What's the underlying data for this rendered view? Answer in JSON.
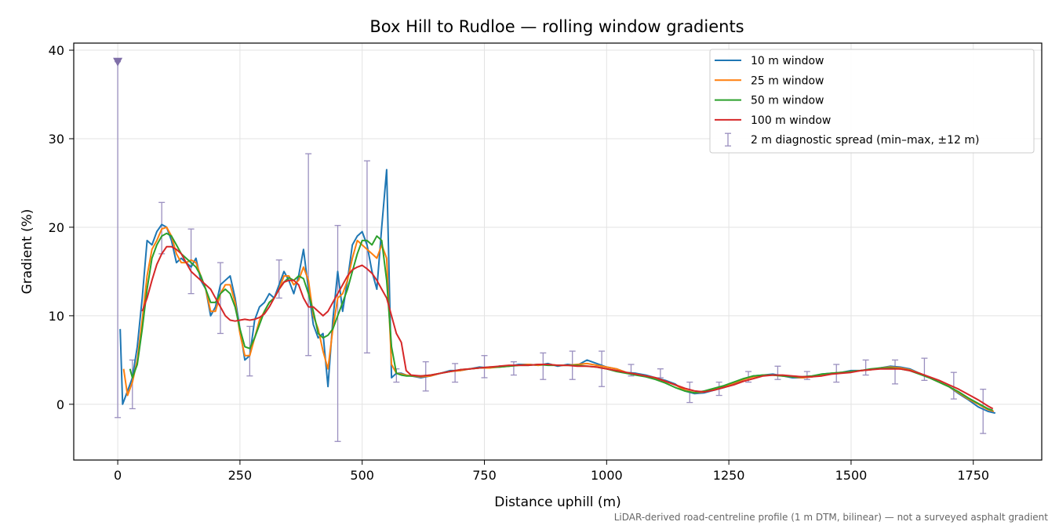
{
  "chart_data": {
    "type": "line",
    "title": "Box Hill to Rudloe — rolling window gradients",
    "xlabel": "Distance uphill (m)",
    "ylabel": "Gradient (%)",
    "xlim": [
      -90,
      1890
    ],
    "ylim": [
      -6.3,
      40.8
    ],
    "xticks": [
      0,
      250,
      500,
      750,
      1000,
      1250,
      1500,
      1750
    ],
    "yticks": [
      0,
      10,
      20,
      30,
      40
    ],
    "grid": true,
    "legend_position": "top-right",
    "footnote": "LiDAR-derived road-centreline profile (1 m DTM, bilinear) — not a surveyed asphalt gradient",
    "series": [
      {
        "name": "10 m window",
        "color": "#1f77b4",
        "x": [
          5,
          10,
          20,
          30,
          40,
          50,
          60,
          70,
          80,
          90,
          100,
          110,
          120,
          130,
          140,
          150,
          160,
          170,
          180,
          190,
          200,
          210,
          220,
          230,
          240,
          250,
          260,
          270,
          280,
          290,
          300,
          310,
          320,
          330,
          340,
          350,
          360,
          370,
          380,
          390,
          400,
          410,
          420,
          430,
          440,
          450,
          460,
          470,
          480,
          490,
          500,
          510,
          520,
          530,
          540,
          550,
          560,
          570,
          580,
          590,
          600,
          620,
          640,
          660,
          680,
          700,
          720,
          740,
          760,
          780,
          800,
          820,
          840,
          860,
          880,
          900,
          920,
          940,
          960,
          980,
          1000,
          1020,
          1040,
          1060,
          1080,
          1100,
          1120,
          1140,
          1160,
          1180,
          1200,
          1220,
          1240,
          1260,
          1280,
          1300,
          1320,
          1340,
          1360,
          1380,
          1400,
          1420,
          1440,
          1460,
          1480,
          1500,
          1520,
          1540,
          1560,
          1580,
          1600,
          1620,
          1640,
          1660,
          1680,
          1700,
          1720,
          1740,
          1760,
          1780,
          1795
        ],
        "y": [
          8.5,
          0.0,
          1.5,
          3.0,
          6.5,
          12.0,
          18.5,
          18.0,
          19.5,
          20.3,
          20.0,
          18.5,
          16.0,
          16.5,
          16.0,
          15.5,
          16.5,
          14.0,
          13.0,
          10.0,
          11.0,
          13.5,
          14.0,
          14.5,
          12.0,
          8.5,
          5.0,
          5.5,
          9.5,
          11.0,
          11.5,
          12.5,
          12.0,
          13.5,
          15.0,
          14.0,
          12.5,
          14.5,
          17.5,
          13.0,
          9.0,
          7.5,
          8.0,
          2.0,
          9.5,
          15.0,
          10.5,
          14.0,
          18.0,
          19.0,
          19.5,
          18.0,
          15.0,
          13.0,
          20.0,
          26.5,
          3.0,
          3.5,
          3.5,
          3.3,
          3.2,
          3.0,
          3.2,
          3.5,
          3.8,
          3.8,
          4.0,
          4.2,
          4.1,
          4.3,
          4.3,
          4.5,
          4.5,
          4.4,
          4.6,
          4.3,
          4.5,
          4.4,
          5.0,
          4.6,
          4.2,
          4.0,
          3.6,
          3.5,
          3.3,
          3.0,
          2.7,
          2.3,
          1.5,
          1.2,
          1.3,
          1.6,
          1.9,
          2.3,
          2.8,
          3.2,
          3.3,
          3.4,
          3.2,
          3.0,
          3.0,
          3.1,
          3.4,
          3.5,
          3.6,
          3.8,
          3.8,
          3.9,
          4.1,
          4.3,
          4.2,
          4.0,
          3.5,
          3.0,
          2.5,
          2.0,
          1.2,
          0.5,
          -0.3,
          -0.8,
          -1.0
        ]
      },
      {
        "name": "25 m window",
        "color": "#ff7f0e",
        "x": [
          12,
          20,
          30,
          40,
          50,
          60,
          70,
          80,
          90,
          100,
          110,
          120,
          130,
          140,
          150,
          160,
          170,
          180,
          190,
          200,
          210,
          220,
          230,
          240,
          250,
          260,
          270,
          280,
          290,
          300,
          310,
          320,
          330,
          340,
          350,
          360,
          370,
          380,
          390,
          400,
          410,
          420,
          430,
          440,
          450,
          460,
          470,
          480,
          490,
          500,
          510,
          520,
          530,
          540,
          550,
          560,
          570,
          580,
          590,
          600,
          620,
          640,
          660,
          680,
          700,
          720,
          740,
          760,
          780,
          800,
          820,
          840,
          860,
          880,
          900,
          920,
          940,
          960,
          980,
          1000,
          1020,
          1040,
          1060,
          1080,
          1100,
          1120,
          1140,
          1160,
          1180,
          1200,
          1220,
          1240,
          1260,
          1280,
          1300,
          1320,
          1340,
          1360,
          1380,
          1400,
          1420,
          1440,
          1460,
          1480,
          1500,
          1520,
          1540,
          1560,
          1580,
          1600,
          1620,
          1640,
          1660,
          1680,
          1700,
          1720,
          1740,
          1760,
          1780,
          1792
        ],
        "y": [
          4.0,
          1.0,
          2.5,
          5.0,
          9.5,
          14.5,
          17.5,
          18.5,
          19.8,
          20.0,
          19.0,
          17.0,
          16.0,
          16.0,
          16.3,
          16.0,
          14.5,
          13.0,
          10.5,
          10.5,
          12.5,
          13.5,
          13.5,
          11.5,
          8.0,
          5.5,
          5.5,
          7.5,
          9.5,
          10.5,
          11.5,
          12.0,
          13.0,
          14.5,
          14.5,
          13.5,
          14.0,
          15.5,
          14.0,
          10.0,
          8.5,
          6.0,
          4.0,
          8.5,
          12.0,
          12.5,
          14.0,
          16.5,
          18.5,
          18.0,
          17.5,
          17.0,
          16.5,
          18.0,
          16.5,
          4.5,
          3.5,
          3.4,
          3.3,
          3.2,
          3.1,
          3.2,
          3.5,
          3.7,
          3.8,
          4.0,
          4.1,
          4.1,
          4.2,
          4.3,
          4.4,
          4.5,
          4.4,
          4.5,
          4.4,
          4.4,
          4.5,
          4.6,
          4.4,
          4.2,
          4.0,
          3.6,
          3.4,
          3.2,
          3.0,
          2.6,
          2.2,
          1.6,
          1.3,
          1.4,
          1.7,
          2.0,
          2.4,
          2.8,
          3.1,
          3.3,
          3.3,
          3.2,
          3.1,
          3.0,
          3.1,
          3.3,
          3.5,
          3.6,
          3.7,
          3.8,
          3.9,
          4.1,
          4.2,
          4.1,
          3.9,
          3.5,
          3.0,
          2.5,
          2.0,
          1.3,
          0.6,
          0.0,
          -0.6,
          -0.8
        ]
      },
      {
        "name": "50 m window",
        "color": "#2ca02c",
        "x": [
          25,
          30,
          40,
          50,
          60,
          70,
          80,
          90,
          100,
          110,
          120,
          130,
          140,
          150,
          160,
          170,
          180,
          190,
          200,
          210,
          220,
          230,
          240,
          250,
          260,
          270,
          280,
          290,
          300,
          310,
          320,
          330,
          340,
          350,
          360,
          370,
          380,
          390,
          400,
          410,
          420,
          430,
          440,
          450,
          460,
          470,
          480,
          490,
          500,
          510,
          520,
          530,
          540,
          550,
          560,
          570,
          580,
          590,
          600,
          620,
          640,
          660,
          680,
          700,
          720,
          740,
          760,
          780,
          800,
          820,
          840,
          860,
          880,
          900,
          920,
          940,
          960,
          980,
          1000,
          1020,
          1040,
          1060,
          1080,
          1100,
          1120,
          1140,
          1160,
          1180,
          1200,
          1220,
          1240,
          1260,
          1280,
          1300,
          1320,
          1340,
          1360,
          1380,
          1400,
          1420,
          1440,
          1460,
          1480,
          1500,
          1520,
          1540,
          1560,
          1580,
          1600,
          1620,
          1640,
          1660,
          1680,
          1700,
          1720,
          1740,
          1760,
          1780,
          1790
        ],
        "y": [
          4.0,
          3.0,
          4.5,
          8.5,
          13.0,
          16.5,
          18.0,
          19.0,
          19.3,
          19.0,
          18.0,
          17.0,
          16.5,
          16.0,
          15.5,
          14.5,
          13.0,
          11.5,
          11.5,
          12.5,
          13.0,
          12.5,
          11.0,
          8.5,
          6.5,
          6.3,
          7.5,
          9.0,
          10.5,
          11.5,
          12.0,
          13.0,
          13.8,
          14.3,
          14.0,
          14.5,
          14.2,
          12.5,
          10.5,
          8.0,
          7.5,
          7.8,
          8.5,
          10.0,
          11.5,
          13.0,
          15.0,
          17.0,
          18.5,
          18.5,
          18.0,
          19.0,
          18.5,
          14.0,
          6.5,
          3.5,
          3.3,
          3.2,
          3.2,
          3.2,
          3.3,
          3.5,
          3.7,
          3.9,
          4.0,
          4.1,
          4.2,
          4.2,
          4.3,
          4.4,
          4.4,
          4.5,
          4.4,
          4.4,
          4.4,
          4.4,
          4.3,
          4.2,
          4.0,
          3.7,
          3.5,
          3.3,
          3.1,
          2.8,
          2.4,
          1.9,
          1.5,
          1.3,
          1.5,
          1.8,
          2.1,
          2.5,
          2.9,
          3.2,
          3.3,
          3.3,
          3.2,
          3.1,
          3.1,
          3.2,
          3.4,
          3.5,
          3.6,
          3.7,
          3.8,
          4.0,
          4.1,
          4.1,
          4.0,
          3.8,
          3.4,
          3.0,
          2.5,
          2.0,
          1.4,
          0.7,
          0.1,
          -0.5,
          -0.7
        ]
      },
      {
        "name": "100 m window",
        "color": "#d62728",
        "x": [
          50,
          60,
          70,
          80,
          90,
          100,
          110,
          120,
          130,
          140,
          150,
          160,
          170,
          180,
          190,
          200,
          210,
          220,
          230,
          240,
          250,
          260,
          270,
          280,
          290,
          300,
          310,
          320,
          330,
          340,
          350,
          360,
          370,
          380,
          390,
          400,
          410,
          420,
          430,
          440,
          450,
          460,
          470,
          480,
          490,
          500,
          510,
          520,
          530,
          540,
          550,
          560,
          570,
          580,
          590,
          600,
          620,
          640,
          660,
          680,
          700,
          720,
          740,
          760,
          780,
          800,
          820,
          840,
          860,
          880,
          900,
          920,
          940,
          960,
          980,
          1000,
          1020,
          1040,
          1060,
          1080,
          1100,
          1120,
          1140,
          1160,
          1180,
          1200,
          1220,
          1240,
          1260,
          1280,
          1300,
          1320,
          1340,
          1360,
          1380,
          1400,
          1420,
          1440,
          1460,
          1480,
          1500,
          1520,
          1540,
          1560,
          1580,
          1600,
          1620,
          1640,
          1660,
          1680,
          1700,
          1720,
          1740,
          1760,
          1780,
          1790
        ],
        "y": [
          10.5,
          12.0,
          14.0,
          15.8,
          17.0,
          17.8,
          17.8,
          17.5,
          17.0,
          16.0,
          15.0,
          14.5,
          14.0,
          13.5,
          13.0,
          12.0,
          11.0,
          10.0,
          9.5,
          9.4,
          9.5,
          9.6,
          9.5,
          9.6,
          9.8,
          10.2,
          11.0,
          12.0,
          13.0,
          13.8,
          14.0,
          14.0,
          13.5,
          12.0,
          11.0,
          11.0,
          10.5,
          10.0,
          10.5,
          11.5,
          12.5,
          13.5,
          14.5,
          15.2,
          15.5,
          15.7,
          15.3,
          14.8,
          14.0,
          13.0,
          12.0,
          10.0,
          8.0,
          7.0,
          3.8,
          3.3,
          3.2,
          3.3,
          3.5,
          3.7,
          3.9,
          4.0,
          4.1,
          4.2,
          4.3,
          4.4,
          4.4,
          4.4,
          4.5,
          4.5,
          4.4,
          4.4,
          4.3,
          4.3,
          4.2,
          4.0,
          3.8,
          3.6,
          3.4,
          3.2,
          3.0,
          2.6,
          2.2,
          1.8,
          1.5,
          1.4,
          1.6,
          1.9,
          2.2,
          2.6,
          2.9,
          3.2,
          3.3,
          3.3,
          3.2,
          3.1,
          3.1,
          3.2,
          3.4,
          3.5,
          3.6,
          3.8,
          3.9,
          4.0,
          4.0,
          4.0,
          3.8,
          3.5,
          3.1,
          2.7,
          2.2,
          1.7,
          1.1,
          0.5,
          -0.2,
          -0.5
        ]
      }
    ],
    "diagnostic": {
      "name": "2 m diagnostic spread (min–max, ±12 m)",
      "color": "#9a8fbf",
      "marker_x": 0,
      "marker_y": 38.7,
      "bars": [
        {
          "x": 0,
          "lo": -1.5,
          "hi": 38.7
        },
        {
          "x": 30,
          "lo": -0.5,
          "hi": 5.0
        },
        {
          "x": 90,
          "lo": 17.0,
          "hi": 22.8
        },
        {
          "x": 150,
          "lo": 12.5,
          "hi": 19.8
        },
        {
          "x": 210,
          "lo": 8.0,
          "hi": 16.0
        },
        {
          "x": 270,
          "lo": 3.2,
          "hi": 8.8
        },
        {
          "x": 330,
          "lo": 12.0,
          "hi": 16.3
        },
        {
          "x": 390,
          "lo": 5.5,
          "hi": 28.3
        },
        {
          "x": 450,
          "lo": -4.2,
          "hi": 20.2
        },
        {
          "x": 510,
          "lo": 5.8,
          "hi": 27.5
        },
        {
          "x": 570,
          "lo": 2.5,
          "hi": 4.0
        },
        {
          "x": 630,
          "lo": 1.5,
          "hi": 4.8
        },
        {
          "x": 690,
          "lo": 2.5,
          "hi": 4.6
        },
        {
          "x": 750,
          "lo": 3.0,
          "hi": 5.5
        },
        {
          "x": 810,
          "lo": 3.3,
          "hi": 4.8
        },
        {
          "x": 870,
          "lo": 2.8,
          "hi": 5.8
        },
        {
          "x": 930,
          "lo": 2.8,
          "hi": 6.0
        },
        {
          "x": 990,
          "lo": 2.0,
          "hi": 6.0
        },
        {
          "x": 1050,
          "lo": 3.2,
          "hi": 4.5
        },
        {
          "x": 1110,
          "lo": 3.0,
          "hi": 4.0
        },
        {
          "x": 1170,
          "lo": 0.2,
          "hi": 2.5
        },
        {
          "x": 1230,
          "lo": 1.0,
          "hi": 2.5
        },
        {
          "x": 1290,
          "lo": 2.5,
          "hi": 3.7
        },
        {
          "x": 1350,
          "lo": 2.8,
          "hi": 4.3
        },
        {
          "x": 1410,
          "lo": 2.8,
          "hi": 3.7
        },
        {
          "x": 1470,
          "lo": 2.5,
          "hi": 4.5
        },
        {
          "x": 1530,
          "lo": 3.3,
          "hi": 5.0
        },
        {
          "x": 1590,
          "lo": 2.3,
          "hi": 5.0
        },
        {
          "x": 1650,
          "lo": 2.7,
          "hi": 5.2
        },
        {
          "x": 1710,
          "lo": 0.6,
          "hi": 3.6
        },
        {
          "x": 1770,
          "lo": -3.3,
          "hi": 1.7
        }
      ]
    }
  }
}
